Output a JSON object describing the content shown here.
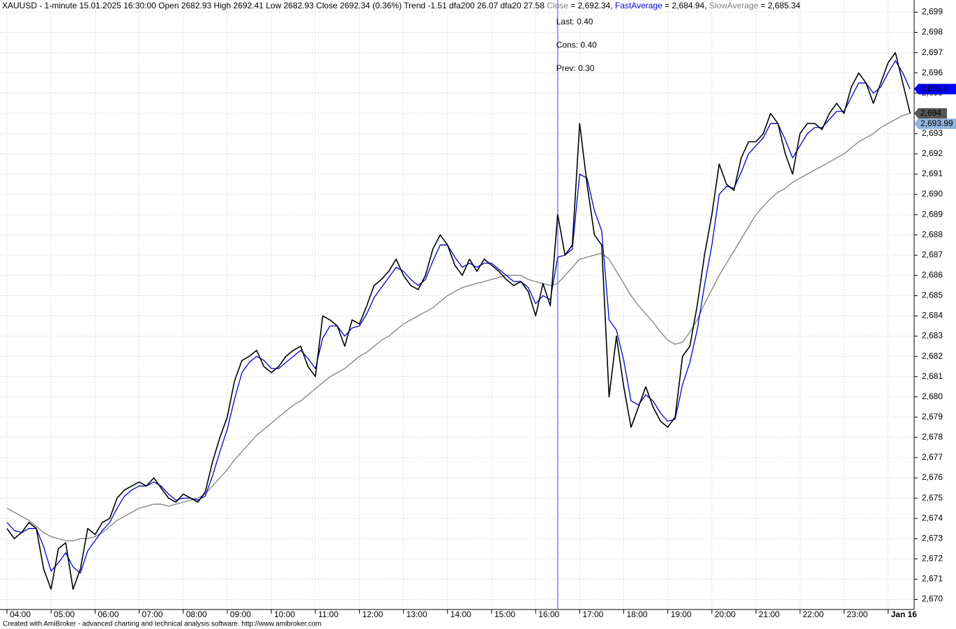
{
  "chart_data": {
    "type": "line",
    "title": "XAUUSD - 1-minute 15.01.2025 16:30:00 Open 2682.93 High 2692.41 Low 2682.93 Close 2692.34 (0.36%) Trend -1.51 dfa200 26.07 dfa20 27.58",
    "x": [
      "04:00",
      "04:10",
      "04:20",
      "04:30",
      "04:40",
      "04:50",
      "05:00",
      "05:10",
      "05:20",
      "05:30",
      "05:40",
      "05:50",
      "06:00",
      "06:10",
      "06:20",
      "06:30",
      "06:40",
      "06:50",
      "07:00",
      "07:10",
      "07:20",
      "07:30",
      "07:40",
      "07:50",
      "08:00",
      "08:10",
      "08:20",
      "08:30",
      "08:40",
      "08:50",
      "09:00",
      "09:10",
      "09:20",
      "09:30",
      "09:40",
      "09:50",
      "10:00",
      "10:10",
      "10:20",
      "10:30",
      "10:40",
      "10:50",
      "11:00",
      "11:10",
      "11:20",
      "11:30",
      "11:40",
      "11:50",
      "12:00",
      "12:10",
      "12:20",
      "12:30",
      "12:40",
      "12:50",
      "13:00",
      "13:10",
      "13:20",
      "13:30",
      "13:40",
      "13:50",
      "14:00",
      "14:10",
      "14:20",
      "14:30",
      "14:40",
      "14:50",
      "15:00",
      "15:10",
      "15:20",
      "15:30",
      "15:40",
      "15:50",
      "16:00",
      "16:10",
      "16:20",
      "16:30",
      "16:40",
      "16:50",
      "17:00",
      "17:10",
      "17:20",
      "17:30",
      "17:40",
      "17:50",
      "18:00",
      "18:10",
      "18:20",
      "18:30",
      "18:40",
      "18:50",
      "19:00",
      "19:10",
      "19:20",
      "19:30",
      "19:40",
      "19:50",
      "20:00",
      "20:10",
      "20:20",
      "20:30",
      "20:40",
      "20:50",
      "21:00",
      "21:10",
      "21:20",
      "21:30",
      "21:40",
      "21:50",
      "22:00",
      "22:10",
      "22:20",
      "22:30",
      "22:40",
      "22:50",
      "23:00",
      "23:10",
      "23:20",
      "23:30",
      "23:40",
      "23:50",
      "00:00",
      "00:10",
      "00:20",
      "00:30"
    ],
    "series": [
      {
        "name": "Close",
        "color": "#000000",
        "width": 1.6,
        "legend_value": "= 2,692.34,",
        "values": [
          2673.5,
          2673.0,
          2673.3,
          2673.8,
          2673.5,
          2671.5,
          2670.5,
          2672.5,
          2672.8,
          2670.5,
          2671.5,
          2673.5,
          2673.2,
          2673.8,
          2674.0,
          2675.0,
          2675.4,
          2675.6,
          2675.8,
          2675.6,
          2676.0,
          2675.5,
          2675.0,
          2674.8,
          2675.2,
          2675.0,
          2674.8,
          2675.3,
          2676.8,
          2678.0,
          2679.0,
          2680.8,
          2681.8,
          2682.0,
          2682.3,
          2681.5,
          2681.2,
          2681.5,
          2682.0,
          2682.3,
          2682.5,
          2681.5,
          2681.0,
          2684.0,
          2683.8,
          2683.5,
          2682.5,
          2683.8,
          2683.6,
          2684.5,
          2685.5,
          2685.8,
          2686.2,
          2686.8,
          2686.0,
          2685.5,
          2685.3,
          2686.0,
          2687.3,
          2688.0,
          2687.5,
          2686.5,
          2686.0,
          2686.8,
          2686.2,
          2686.8,
          2686.5,
          2686.2,
          2685.8,
          2685.5,
          2685.7,
          2685.2,
          2684.0,
          2685.6,
          2684.5,
          2689.0,
          2687.0,
          2687.5,
          2693.5,
          2690.5,
          2688.0,
          2687.5,
          2680.0,
          2683.0,
          2680.5,
          2678.5,
          2679.5,
          2680.5,
          2679.5,
          2678.8,
          2678.5,
          2679.0,
          2682.0,
          2682.5,
          2684.5,
          2687.0,
          2689.0,
          2691.5,
          2690.5,
          2690.2,
          2691.8,
          2692.6,
          2692.6,
          2693.0,
          2694.0,
          2693.5,
          2692.0,
          2691.0,
          2693.0,
          2693.5,
          2693.5,
          2693.2,
          2694.0,
          2694.5,
          2694.0,
          2695.3,
          2696.0,
          2695.5,
          2694.5,
          2695.5,
          2696.5,
          2697.0,
          2695.5,
          2694.0
        ]
      },
      {
        "name": "FastAverage",
        "color": "#0000cc",
        "width": 1.3,
        "legend_value": "= 2,684.94,",
        "values": [
          2673.8,
          2673.4,
          2673.3,
          2673.5,
          2673.5,
          2672.6,
          2671.4,
          2671.8,
          2672.3,
          2671.6,
          2671.3,
          2672.4,
          2672.9,
          2673.4,
          2673.8,
          2674.5,
          2675.1,
          2675.4,
          2675.6,
          2675.6,
          2675.8,
          2675.6,
          2675.2,
          2674.9,
          2675.0,
          2675.0,
          2674.9,
          2675.1,
          2676.1,
          2677.3,
          2678.4,
          2679.9,
          2681.2,
          2681.7,
          2682.0,
          2681.8,
          2681.4,
          2681.4,
          2681.7,
          2682.0,
          2682.3,
          2681.9,
          2681.4,
          2682.9,
          2683.5,
          2683.5,
          2683.0,
          2683.4,
          2683.5,
          2684.1,
          2684.9,
          2685.4,
          2685.9,
          2686.4,
          2686.2,
          2685.8,
          2685.5,
          2685.8,
          2686.7,
          2687.5,
          2687.5,
          2686.9,
          2686.4,
          2686.6,
          2686.4,
          2686.6,
          2686.6,
          2686.3,
          2686.0,
          2685.7,
          2685.7,
          2685.4,
          2684.6,
          2685.0,
          2684.8,
          2686.9,
          2687.0,
          2687.3,
          2691.0,
          2690.8,
          2689.2,
          2688.2,
          2683.8,
          2683.3,
          2681.8,
          2679.8,
          2679.6,
          2680.1,
          2679.8,
          2679.2,
          2678.8,
          2678.9,
          2680.6,
          2681.7,
          2683.3,
          2685.5,
          2687.5,
          2690.0,
          2690.4,
          2690.3,
          2691.1,
          2692.0,
          2692.4,
          2692.8,
          2693.5,
          2693.5,
          2692.7,
          2691.8,
          2692.4,
          2693.0,
          2693.3,
          2693.3,
          2693.7,
          2694.1,
          2694.1,
          2694.8,
          2695.5,
          2695.5,
          2695.0,
          2695.3,
          2696.0,
          2696.6,
          2696.0,
          2695.2
        ]
      },
      {
        "name": "SlowAverage",
        "color": "#808080",
        "width": 1.3,
        "legend_value": "= 2,685.34",
        "values": [
          2674.5,
          2674.3,
          2674.1,
          2673.9,
          2673.6,
          2673.3,
          2673.1,
          2673.0,
          2672.9,
          2672.9,
          2673.0,
          2673.0,
          2673.1,
          2673.3,
          2673.6,
          2673.9,
          2674.1,
          2674.3,
          2674.5,
          2674.6,
          2674.7,
          2674.7,
          2674.6,
          2674.7,
          2674.8,
          2674.9,
          2675.0,
          2675.2,
          2675.6,
          2676.0,
          2676.4,
          2676.9,
          2677.3,
          2677.7,
          2678.1,
          2678.4,
          2678.7,
          2679.0,
          2679.3,
          2679.6,
          2679.8,
          2680.1,
          2680.4,
          2680.7,
          2681.0,
          2681.2,
          2681.4,
          2681.7,
          2682.0,
          2682.2,
          2682.5,
          2682.8,
          2683.0,
          2683.3,
          2683.6,
          2683.8,
          2684.0,
          2684.2,
          2684.4,
          2684.7,
          2685.0,
          2685.2,
          2685.4,
          2685.5,
          2685.6,
          2685.7,
          2685.8,
          2685.9,
          2686.0,
          2686.0,
          2686.0,
          2685.8,
          2685.7,
          2685.6,
          2685.5,
          2685.6,
          2686.0,
          2686.4,
          2686.8,
          2686.9,
          2687.0,
          2687.1,
          2686.8,
          2686.2,
          2685.6,
          2685.0,
          2684.5,
          2684.1,
          2683.7,
          2683.2,
          2682.8,
          2682.6,
          2682.7,
          2683.2,
          2683.8,
          2684.6,
          2685.3,
          2686.0,
          2686.6,
          2687.2,
          2687.8,
          2688.4,
          2689.0,
          2689.4,
          2689.8,
          2690.1,
          2690.3,
          2690.6,
          2690.8,
          2691.0,
          2691.2,
          2691.4,
          2691.6,
          2691.8,
          2692.0,
          2692.3,
          2692.6,
          2692.8,
          2693.0,
          2693.3,
          2693.5,
          2693.7,
          2693.9,
          2694.0
        ]
      }
    ],
    "ylim": [
      2669.5,
      2699.6
    ],
    "yticks": [
      {
        "value": 2670,
        "label": "2,670"
      },
      {
        "value": 2671,
        "label": "2,671"
      },
      {
        "value": 2672,
        "label": "2,672"
      },
      {
        "value": 2673,
        "label": "2,673"
      },
      {
        "value": 2674,
        "label": "2,674"
      },
      {
        "value": 2675,
        "label": "2,675"
      },
      {
        "value": 2676,
        "label": "2,676"
      },
      {
        "value": 2677,
        "label": "2,677"
      },
      {
        "value": 2678,
        "label": "2,678"
      },
      {
        "value": 2679,
        "label": "2,679"
      },
      {
        "value": 2680,
        "label": "2,680"
      },
      {
        "value": 2681,
        "label": "2,681"
      },
      {
        "value": 2682,
        "label": "2,682"
      },
      {
        "value": 2683,
        "label": "2,683"
      },
      {
        "value": 2684,
        "label": "2,684"
      },
      {
        "value": 2685,
        "label": "2,685"
      },
      {
        "value": 2686,
        "label": "2,686"
      },
      {
        "value": 2687,
        "label": "2,687"
      },
      {
        "value": 2688,
        "label": "2,688"
      },
      {
        "value": 2689,
        "label": "2,689"
      },
      {
        "value": 2690,
        "label": "2,690"
      },
      {
        "value": 2691,
        "label": "2,691"
      },
      {
        "value": 2692,
        "label": "2,692"
      },
      {
        "value": 2693,
        "label": "2,693"
      },
      {
        "value": 2694,
        "label": "2,694"
      },
      {
        "value": 2695,
        "label": "2,695"
      },
      {
        "value": 2696,
        "label": "2,696"
      },
      {
        "value": 2697,
        "label": "2,697"
      },
      {
        "value": 2698,
        "label": "2,698"
      },
      {
        "value": 2699,
        "label": "2,699"
      }
    ],
    "xticks": [
      "04:00",
      "05:00",
      "06:00",
      "07:00",
      "08:00",
      "09:00",
      "10:00",
      "11:00",
      "12:00",
      "13:00",
      "14:00",
      "15:00",
      "16:00",
      "17:00",
      "18:00",
      "19:00",
      "20:00",
      "21:00",
      "22:00",
      "23:00",
      {
        "value": "00:00",
        "label": "Jan 16"
      }
    ],
    "grid": true,
    "cursor_x": "16:30",
    "cursor_color": "#9999ff",
    "annotations": [
      "Last: 0.40",
      "Cons: 0.40",
      "Prev: 0.30"
    ],
    "annotation_color": "#008000",
    "axis_tags": [
      {
        "value": 2695.2,
        "label": "2,695.2",
        "color": "#0000ff",
        "text_color": "#ffffff"
      },
      {
        "value": 2694,
        "label": "2,694",
        "color": "#555555",
        "text_color": "#ffffff"
      },
      {
        "value": 2693.99,
        "label": "2,693.99",
        "color": "#8fb3dc",
        "text_color": "#000000"
      }
    ],
    "footer": "Created with AmiBroker - advanced charting and technical analysis software. http://www.amibroker.com"
  }
}
